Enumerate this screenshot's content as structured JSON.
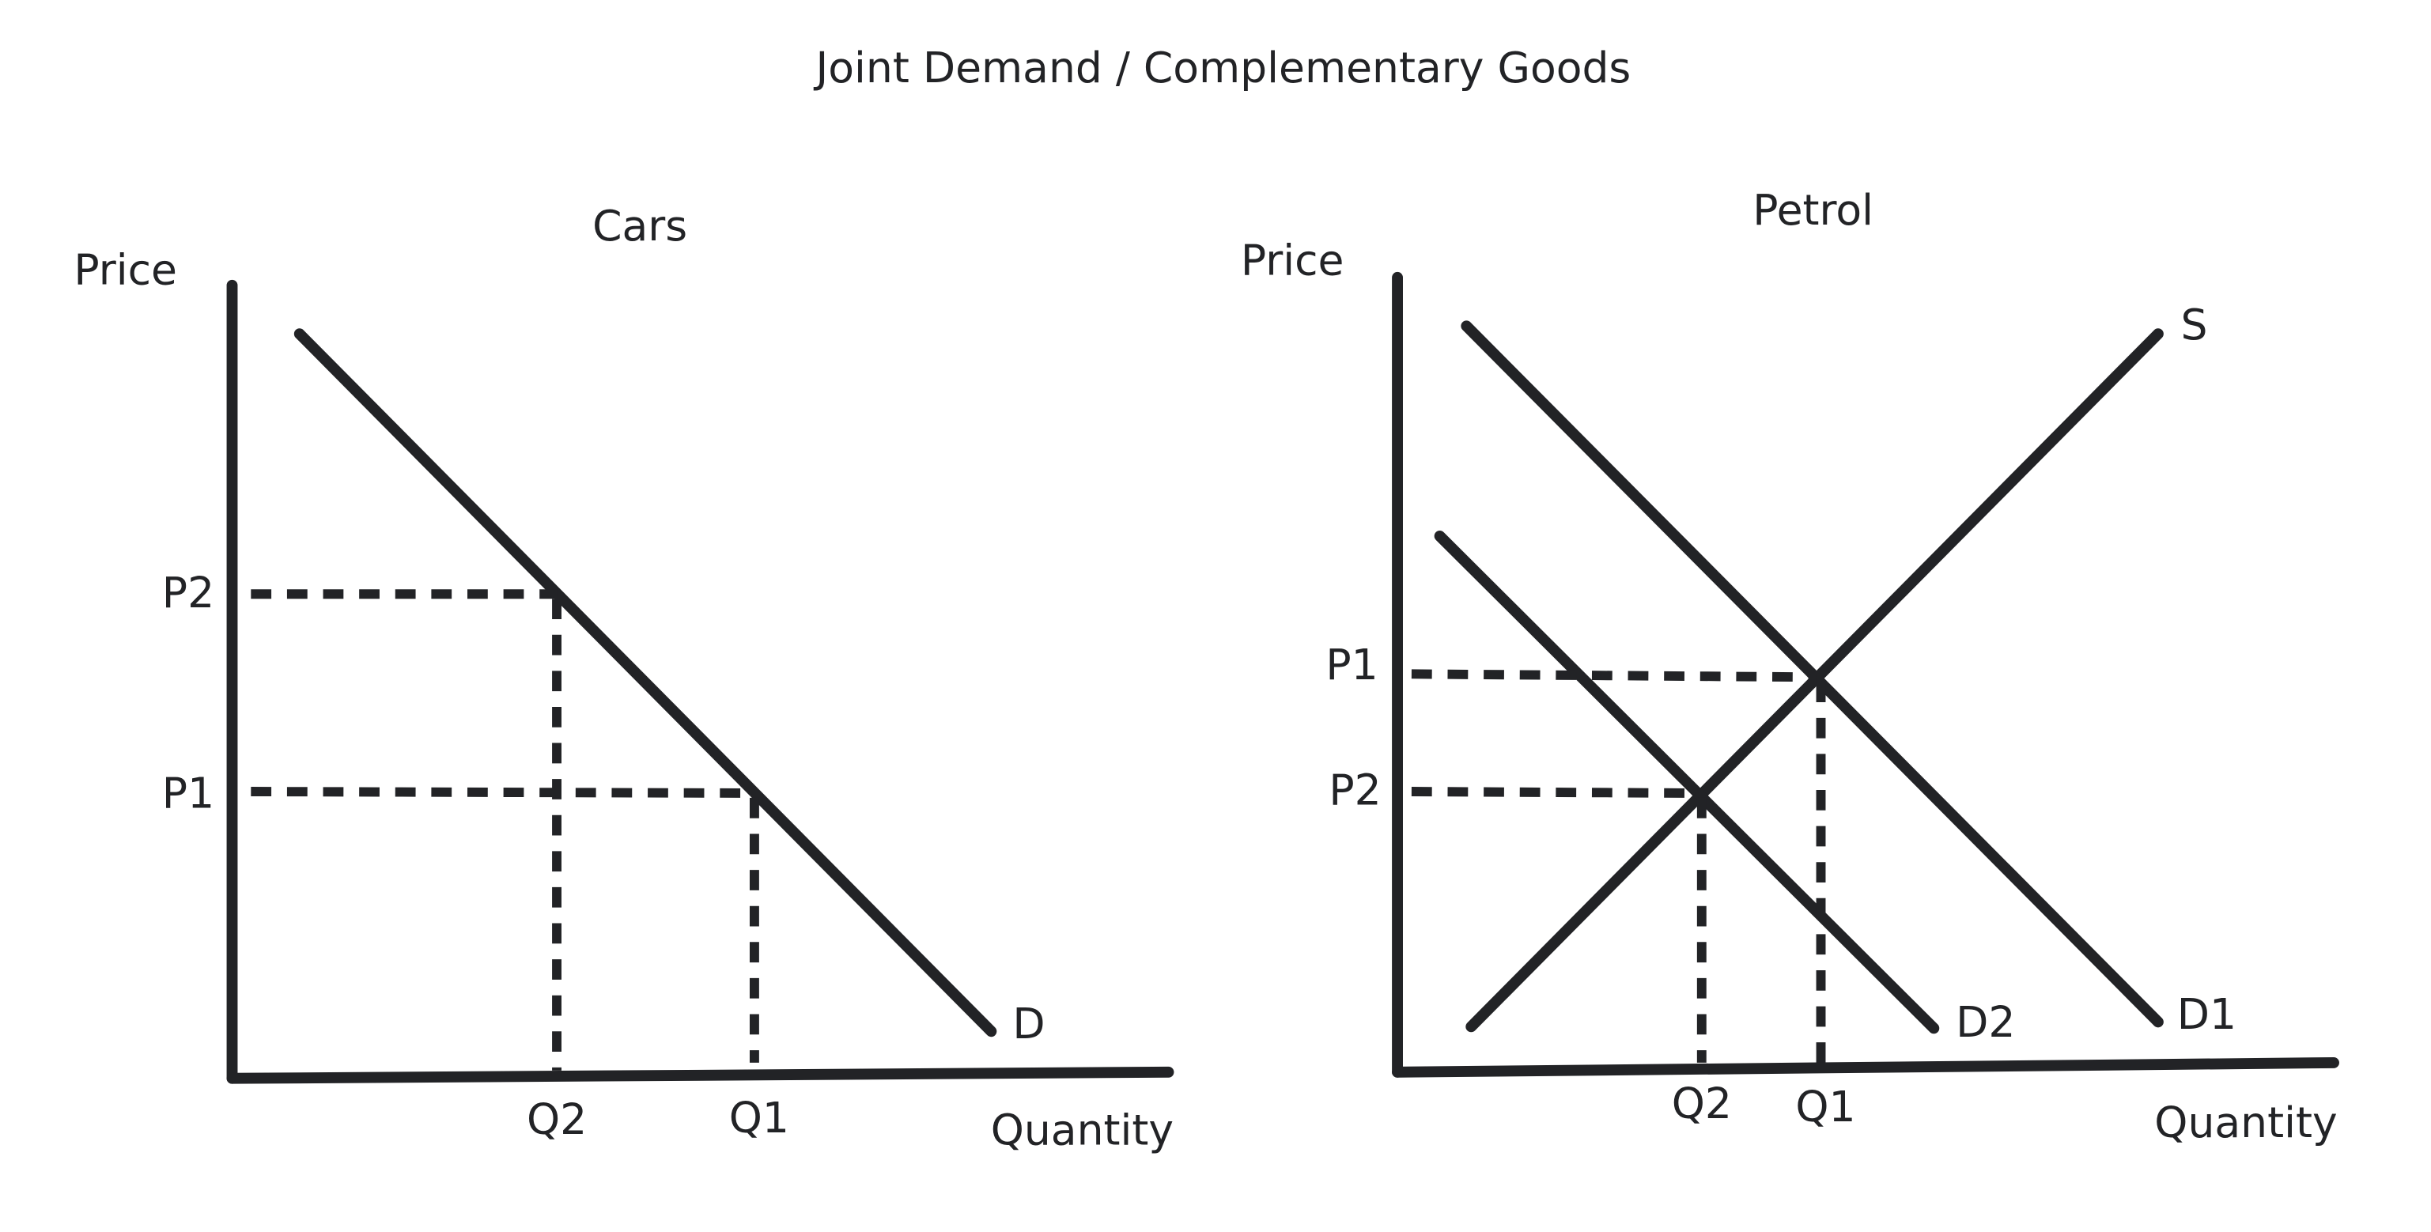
{
  "title": "Joint Demand / Complementary Goods",
  "panels": [
    {
      "title": "Cars",
      "y_axis_label": "Price",
      "x_axis_label": "Quantity",
      "price_labels": [
        "P2",
        "P1"
      ],
      "quantity_labels": [
        "Q2",
        "Q1"
      ],
      "curve_labels": [
        "D"
      ]
    },
    {
      "title": "Petrol",
      "y_axis_label": "Price",
      "x_axis_label": "Quantity",
      "price_labels": [
        "P1",
        "P2"
      ],
      "quantity_labels": [
        "Q2",
        "Q1"
      ],
      "curve_labels": [
        "S",
        "D2",
        "D1"
      ]
    }
  ]
}
